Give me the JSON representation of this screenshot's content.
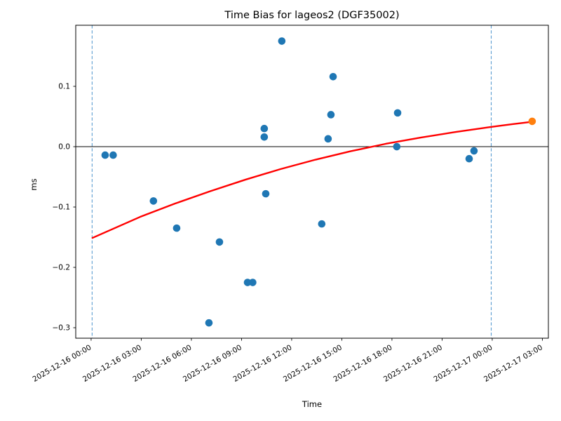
{
  "figure": {
    "title": "Time Bias for lageos2 (DGF35002)",
    "xlabel": "Time",
    "ylabel": "ms"
  },
  "chart_data": {
    "type": "scatter",
    "title": "Time Bias for lageos2 (DGF35002)",
    "xlabel": "Time",
    "ylabel": "ms",
    "grid": false,
    "legend": "none",
    "x_axis": {
      "unit": "datetime",
      "tick_labels": [
        "2025-12-16 00:00",
        "2025-12-16 03:00",
        "2025-12-16 06:00",
        "2025-12-16 09:00",
        "2025-12-16 12:00",
        "2025-12-16 15:00",
        "2025-12-16 18:00",
        "2025-12-16 21:00",
        "2025-12-17 00:00",
        "2025-12-17 03:00"
      ],
      "tick_hours": [
        0,
        3,
        6,
        9,
        12,
        15,
        18,
        21,
        24,
        27
      ],
      "range_hours": [
        -0.92,
        27.36
      ]
    },
    "y_axis": {
      "tick_labels": [
        "0.1",
        "0.0",
        "−0.1",
        "−0.2",
        "−0.3"
      ],
      "tick_values": [
        0.1,
        0.0,
        -0.1,
        -0.2,
        -0.3
      ],
      "range": [
        -0.3174,
        0.2012
      ]
    },
    "series": [
      {
        "name": "time-bias-observations",
        "marker": "circle",
        "color": "#1f77b4",
        "points": [
          {
            "time": "2025-12-16 00:50",
            "hours": 0.84,
            "ms": -0.014
          },
          {
            "time": "2025-12-16 01:19",
            "hours": 1.32,
            "ms": -0.014
          },
          {
            "time": "2025-12-16 03:44",
            "hours": 3.73,
            "ms": -0.09
          },
          {
            "time": "2025-12-16 05:07",
            "hours": 5.12,
            "ms": -0.135
          },
          {
            "time": "2025-12-16 07:03",
            "hours": 7.05,
            "ms": -0.292
          },
          {
            "time": "2025-12-16 07:41",
            "hours": 7.68,
            "ms": -0.158
          },
          {
            "time": "2025-12-16 09:22",
            "hours": 9.36,
            "ms": -0.225
          },
          {
            "time": "2025-12-16 09:40",
            "hours": 9.67,
            "ms": -0.225
          },
          {
            "time": "2025-12-16 10:22",
            "hours": 10.36,
            "ms": 0.03
          },
          {
            "time": "2025-12-16 10:22",
            "hours": 10.36,
            "ms": 0.016
          },
          {
            "time": "2025-12-16 10:27",
            "hours": 10.45,
            "ms": -0.078
          },
          {
            "time": "2025-12-16 11:25",
            "hours": 11.41,
            "ms": 0.175
          },
          {
            "time": "2025-12-16 13:48",
            "hours": 13.8,
            "ms": -0.128
          },
          {
            "time": "2025-12-16 14:11",
            "hours": 14.18,
            "ms": 0.013
          },
          {
            "time": "2025-12-16 14:21",
            "hours": 14.35,
            "ms": 0.053
          },
          {
            "time": "2025-12-16 14:29",
            "hours": 14.48,
            "ms": 0.116
          },
          {
            "time": "2025-12-16 18:17",
            "hours": 18.29,
            "ms": 0.0
          },
          {
            "time": "2025-12-16 18:20",
            "hours": 18.34,
            "ms": 0.056
          },
          {
            "time": "2025-12-16 22:37",
            "hours": 22.62,
            "ms": -0.02
          },
          {
            "time": "2025-12-16 22:55",
            "hours": 22.91,
            "ms": -0.007
          }
        ]
      },
      {
        "name": "extrapolated-point",
        "marker": "circle",
        "color": "#ff7f0e",
        "points": [
          {
            "time": "2025-12-17 02:23",
            "hours": 26.39,
            "ms": 0.042
          }
        ]
      }
    ],
    "fit_curve": {
      "name": "trend-fit-curve",
      "color": "#ff0000",
      "points_hours_ms": [
        [
          0.08,
          -0.1512
        ],
        [
          2.94,
          -0.1163
        ],
        [
          5.03,
          -0.0942
        ],
        [
          7.13,
          -0.0738
        ],
        [
          9.23,
          -0.0547
        ],
        [
          11.33,
          -0.0372
        ],
        [
          13.43,
          -0.0215
        ],
        [
          15.52,
          -0.0076
        ],
        [
          17.62,
          0.0047
        ],
        [
          19.72,
          0.0151
        ],
        [
          21.82,
          0.0244
        ],
        [
          23.92,
          0.0326
        ],
        [
          25.17,
          0.0372
        ],
        [
          26.39,
          0.0413
        ]
      ]
    },
    "reference_lines": {
      "zero_line_y": 0,
      "zero_line_color": "#000000",
      "vertical_dashed_hours": [
        0.06,
        23.94
      ],
      "vertical_dashed_color": "#5b9dd1"
    },
    "layout": {
      "plot_left": 108,
      "plot_top": 36,
      "plot_right": 782,
      "plot_bottom": 482,
      "x_tick_rotation_deg": 30,
      "marker_radius": 5.3
    }
  }
}
